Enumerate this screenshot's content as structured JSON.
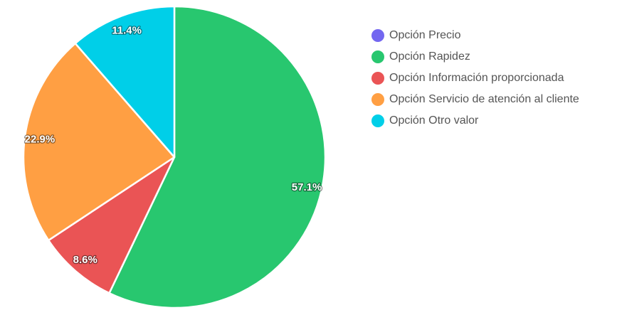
{
  "chart_data": {
    "type": "pie",
    "categories": [
      "Opción Precio",
      "Opción Rapidez",
      "Opción Información proporcionada",
      "Opción Servicio de atención al cliente",
      "Opción Otro valor"
    ],
    "values": [
      0,
      57.1,
      8.6,
      22.9,
      11.4
    ],
    "value_labels": [
      "",
      "57.1%",
      "8.6%",
      "22.9%",
      "11.4%"
    ],
    "colors": [
      "#7367f0",
      "#28c76f",
      "#ea5455",
      "#ff9f43",
      "#00cfe8"
    ],
    "legend_position": "right"
  }
}
